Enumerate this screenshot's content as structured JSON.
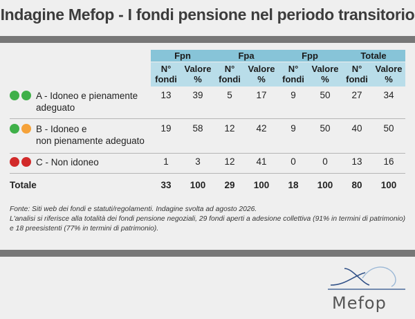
{
  "title": "Indagine Mefop - I fondi pensione nel periodo transitorio",
  "colors": {
    "header_group": "#87c4d8",
    "header_sub": "#b9dde9",
    "green": "#3fb049",
    "orange": "#f5a23a",
    "red": "#d22a2a",
    "bar": "#777777"
  },
  "table": {
    "groups": [
      "Fpn",
      "Fpa",
      "Fpp",
      "Totale"
    ],
    "sub_headers": [
      {
        "n": "N° fondi",
        "v": "Valore %"
      },
      {
        "n": "N° fondi",
        "v": "Valore %"
      },
      {
        "n": "N° fondi",
        "v": "Valore %"
      },
      {
        "n": "N° fondi",
        "v": "Valore %"
      }
    ],
    "rows": [
      {
        "label_line1": "A - Idoneo e pienamente",
        "label_line2": "adeguato",
        "dots": [
          "green",
          "green"
        ],
        "values": [
          "13",
          "39",
          "5",
          "17",
          "9",
          "50",
          "27",
          "34"
        ]
      },
      {
        "label_line1": "B - Idoneo e",
        "label_line2": "non pienamente adeguato",
        "dots": [
          "green",
          "orange"
        ],
        "values": [
          "19",
          "58",
          "12",
          "42",
          "9",
          "50",
          "40",
          "50"
        ]
      },
      {
        "label_line1": "C - Non idoneo",
        "label_line2": "",
        "dots": [
          "red",
          "red"
        ],
        "values": [
          "1",
          "3",
          "12",
          "41",
          "0",
          "0",
          "13",
          "16"
        ]
      }
    ],
    "total": {
      "label": "Totale",
      "values": [
        "33",
        "100",
        "29",
        "100",
        "18",
        "100",
        "80",
        "100"
      ]
    }
  },
  "notes": {
    "source": "Fonte: Siti web dei fondi e statuti/regolamenti. Indagine svolta ad agosto 2026.",
    "detail": "L'analisi si riferisce alla totalità dei fondi pensione negoziali, 29 fondi aperti a adesione collettiva (91% in termini di patrimonio) e 18 preesistenti (77% in termini di patrimonio)."
  },
  "logo": {
    "text": "Mefop",
    "icon": "mefop-logo-icon"
  }
}
